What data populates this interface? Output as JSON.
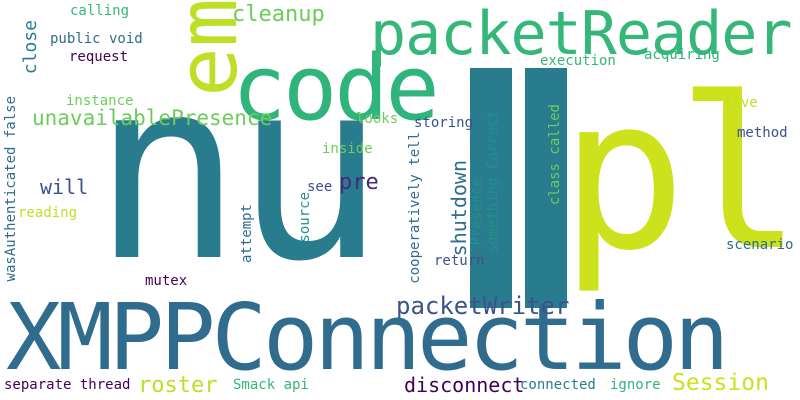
{
  "words": {
    "xmppconnection": "XMPPConnection",
    "nu": "nu",
    "ll": "ll",
    "pi": "pl",
    "code": "code",
    "packetReader": "packetReader",
    "em": "em",
    "cleanup": "cleanup",
    "packetWriter": "packetWriter",
    "unavailablePresence": "unavailablePresence",
    "shutdown": "shutdown",
    "pre": "pre",
    "will": "will",
    "roster": "roster",
    "Session": "Session",
    "disconnect": "disconnect",
    "calling": "calling",
    "public_void": "public void",
    "request": "request",
    "close": "close",
    "instance": "instance",
    "wasAuthenticated_false": "wasAuthenticated false",
    "reading": "reading",
    "looks": "looks",
    "inside": "inside",
    "storing": "storing",
    "see": "see",
    "source": "source",
    "attempt": "attempt",
    "mutex": "mutex",
    "cooperatively_tell": "cooperatively tell",
    "Presence": "Presence",
    "something_Correct": "something Correct",
    "return": "return",
    "execution": "execution",
    "acquiring": "acquiring",
    "class_called": "class called",
    "live": "live",
    "method": "method",
    "scenario": "scenario",
    "separate_thread": "separate thread",
    "Smack_api": "Smack api",
    "connected": "connected",
    "ignore": "ignore"
  },
  "colors": {
    "teal": "#287c8e",
    "blue": "#2f6c8e",
    "darkblue": "#3b528b",
    "purple": "#482878",
    "darkpurple": "#440154",
    "green": "#35b779",
    "emerald": "#2fb47c",
    "lime": "#bddf26",
    "yellowgreen": "#cde11d",
    "lightgreen": "#6ccd5a",
    "cyan": "#21918c"
  }
}
